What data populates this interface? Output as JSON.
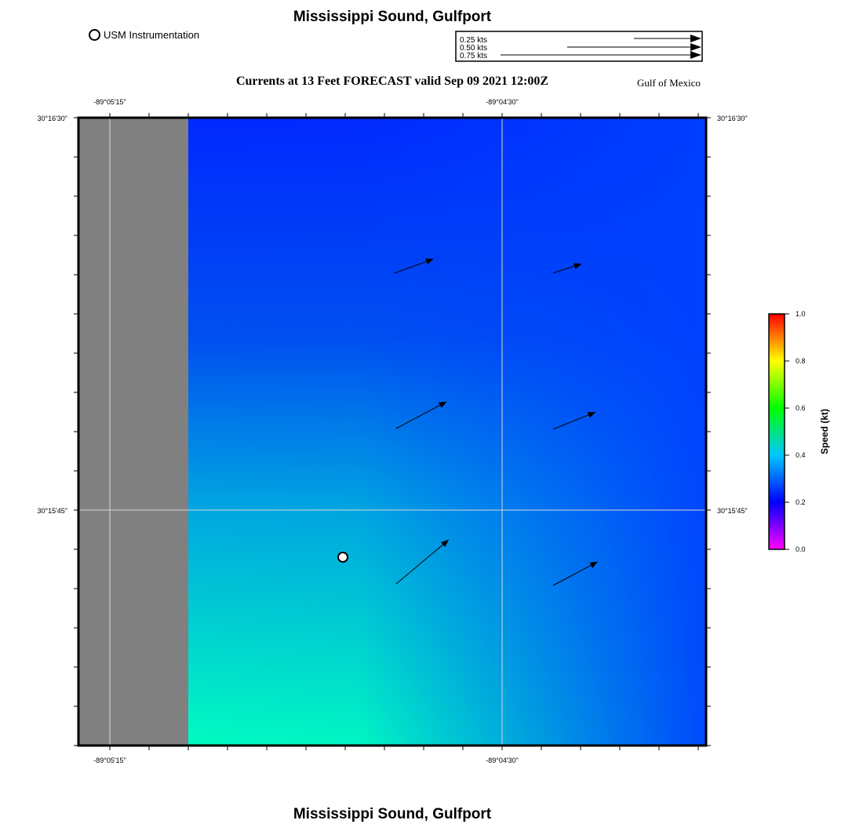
{
  "title": "Mississippi Sound, Gulfport",
  "footer_title": "Mississippi Sound, Gulfport",
  "subtitle": "Currents at 13 Feet FORECAST valid Sep 09 2021 12:00Z",
  "region_label": "Gulf of Mexico",
  "station_legend": "USM Instrumentation",
  "speed_scale": [
    {
      "label": "0.25 kts",
      "value": 0.25
    },
    {
      "label": "0.50 kts",
      "value": 0.5
    },
    {
      "label": "0.75 kts",
      "value": 0.75
    }
  ],
  "axes": {
    "lon_ticks": [
      "-89°05'15\"",
      "-89°04'30\""
    ],
    "lat_ticks": [
      "30°16'30\"",
      "30°15'45\""
    ]
  },
  "colorbar": {
    "title": "Speed (kt)",
    "ticks": [
      "0.0",
      "0.2",
      "0.4",
      "0.6",
      "0.8",
      "1.0"
    ],
    "min": 0.0,
    "max": 1.0
  },
  "colors": {
    "land": "#808080",
    "speed_low": "#0028ff",
    "speed_mid": "#0096e6",
    "speed_high": "#00ffc0"
  },
  "current_vectors": [
    {
      "name": "vector-r1c1",
      "speed": 0.18,
      "direction_deg": 70
    },
    {
      "name": "vector-r1c2",
      "speed": 0.13,
      "direction_deg": 72
    },
    {
      "name": "vector-r2c1",
      "speed": 0.25,
      "direction_deg": 62
    },
    {
      "name": "vector-r2c2",
      "speed": 0.2,
      "direction_deg": 68
    },
    {
      "name": "vector-r3c1",
      "speed": 0.3,
      "direction_deg": 50
    },
    {
      "name": "vector-r3c2",
      "speed": 0.22,
      "direction_deg": 62
    }
  ]
}
